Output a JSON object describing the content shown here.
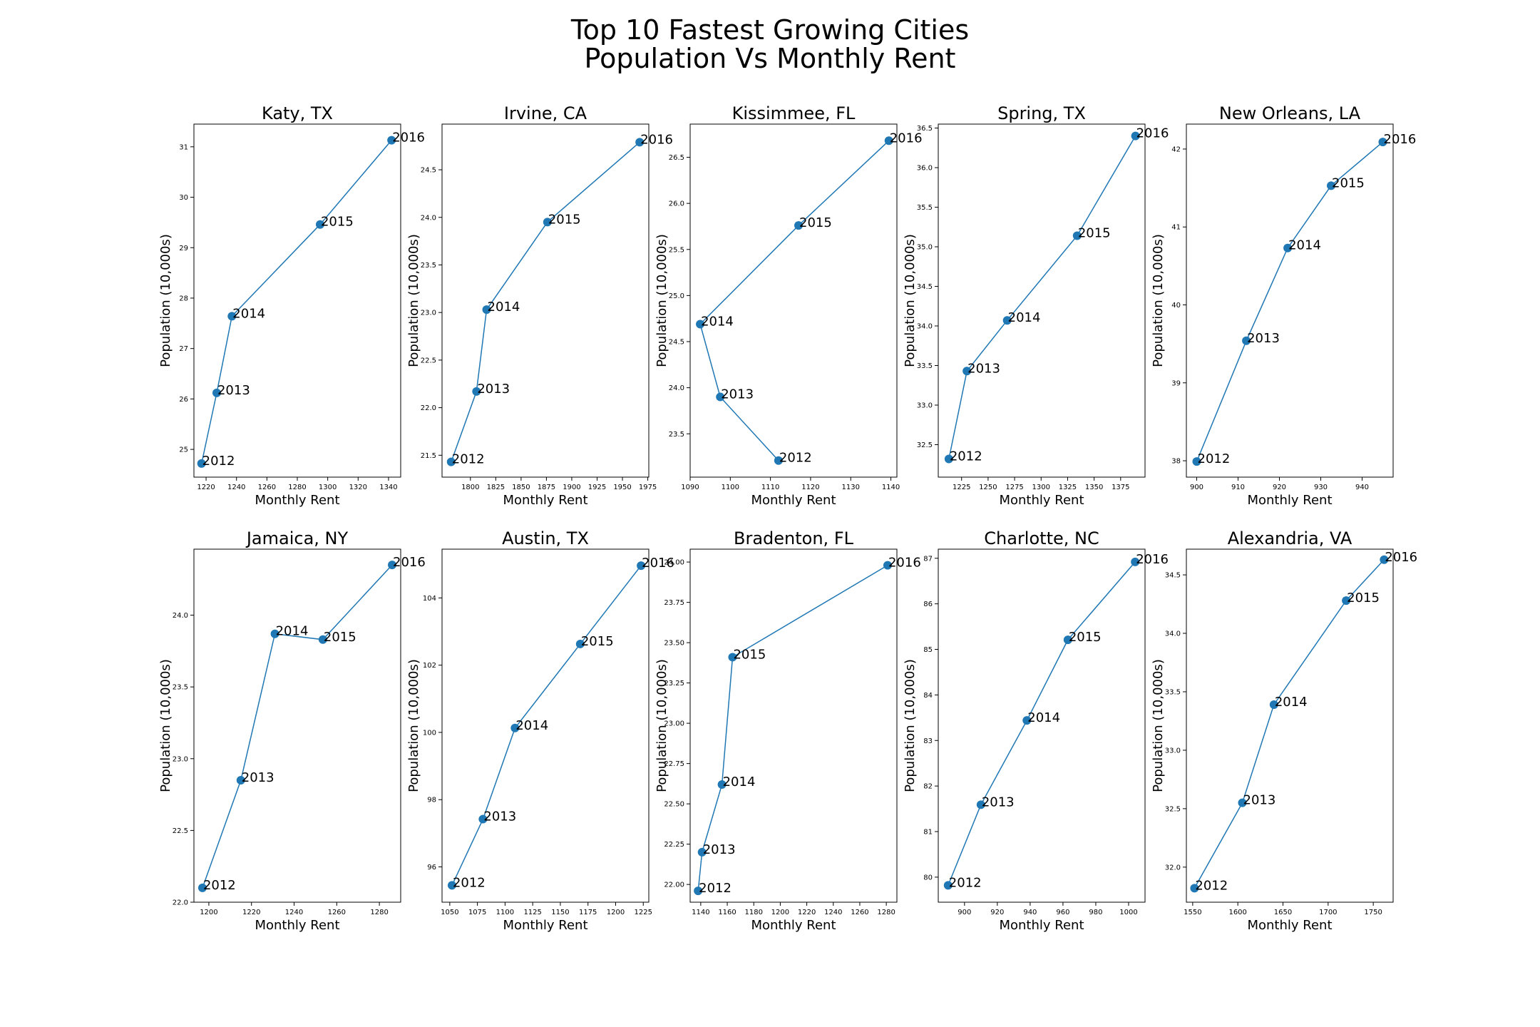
{
  "figure": {
    "title_line1": "Top 10 Fastest Growing Cities",
    "title_line2": "Population Vs Monthly Rent"
  },
  "colors": {
    "series": "#1f77b4",
    "axis": "#000000",
    "background": "#ffffff"
  },
  "chart_data": [
    {
      "type": "scatter",
      "title": "Katy, TX",
      "xlabel": "Monthly Rent",
      "ylabel": "Population (10,000s)",
      "xlim": [
        1212,
        1348
      ],
      "ylim": [
        24.45,
        31.45
      ],
      "xticks": [
        1220,
        1240,
        1260,
        1280,
        1300,
        1320,
        1340
      ],
      "yticks": [
        25,
        26,
        27,
        28,
        29,
        30,
        31
      ],
      "points": [
        {
          "label": "2012",
          "x": 1217,
          "y": 24.72
        },
        {
          "label": "2013",
          "x": 1227,
          "y": 26.12
        },
        {
          "label": "2014",
          "x": 1237,
          "y": 27.64
        },
        {
          "label": "2015",
          "x": 1295,
          "y": 29.46
        },
        {
          "label": "2016",
          "x": 1342,
          "y": 31.13
        }
      ]
    },
    {
      "type": "scatter",
      "title": "Irvine, CA",
      "xlabel": "Monthly Rent",
      "ylabel": "Population (10,000s)",
      "xlim": [
        1772,
        1976
      ],
      "ylim": [
        21.27,
        24.98
      ],
      "xticks": [
        1800,
        1825,
        1850,
        1875,
        1900,
        1925,
        1950,
        1975
      ],
      "yticks": [
        21.5,
        22.0,
        22.5,
        23.0,
        23.5,
        24.0,
        24.5
      ],
      "points": [
        {
          "label": "2012",
          "x": 1781,
          "y": 21.43
        },
        {
          "label": "2013",
          "x": 1806,
          "y": 22.17
        },
        {
          "label": "2014",
          "x": 1816,
          "y": 23.03
        },
        {
          "label": "2015",
          "x": 1876,
          "y": 23.95
        },
        {
          "label": "2016",
          "x": 1967,
          "y": 24.79
        }
      ]
    },
    {
      "type": "scatter",
      "title": "Kissimmee, FL",
      "xlabel": "Monthly Rent",
      "ylabel": "Population (10,000s)",
      "xlim": [
        1090,
        1141.5
      ],
      "ylim": [
        23.03,
        26.86
      ],
      "xticks": [
        1090,
        1100,
        1110,
        1120,
        1130,
        1140
      ],
      "yticks": [
        23.5,
        24.0,
        24.5,
        25.0,
        25.5,
        26.0,
        26.5
      ],
      "points": [
        {
          "label": "2012",
          "x": 1112,
          "y": 23.21
        },
        {
          "label": "2013",
          "x": 1097.5,
          "y": 23.9
        },
        {
          "label": "2014",
          "x": 1092.5,
          "y": 24.69
        },
        {
          "label": "2015",
          "x": 1117,
          "y": 25.76
        },
        {
          "label": "2016",
          "x": 1139.5,
          "y": 26.68
        }
      ]
    },
    {
      "type": "scatter",
      "title": "Spring, TX",
      "xlabel": "Monthly Rent",
      "ylabel": "Population (10,000s)",
      "xlim": [
        1203,
        1398
      ],
      "ylim": [
        32.09,
        36.55
      ],
      "xticks": [
        1225,
        1250,
        1275,
        1300,
        1325,
        1350,
        1375
      ],
      "yticks": [
        32.5,
        33.0,
        33.5,
        34.0,
        34.5,
        35.0,
        35.5,
        36.0,
        36.5
      ],
      "points": [
        {
          "label": "2012",
          "x": 1213,
          "y": 32.32
        },
        {
          "label": "2013",
          "x": 1230,
          "y": 33.43
        },
        {
          "label": "2014",
          "x": 1268,
          "y": 34.07
        },
        {
          "label": "2015",
          "x": 1334,
          "y": 35.14
        },
        {
          "label": "2016",
          "x": 1389,
          "y": 36.4
        }
      ]
    },
    {
      "type": "scatter",
      "title": "New Orleans, LA",
      "xlabel": "Monthly Rent",
      "ylabel": "Population (10,000s)",
      "xlim": [
        897.5,
        947.5
      ],
      "ylim": [
        37.79,
        42.32
      ],
      "xticks": [
        900,
        910,
        920,
        930,
        940
      ],
      "yticks": [
        38,
        39,
        40,
        41,
        42
      ],
      "points": [
        {
          "label": "2012",
          "x": 900,
          "y": 37.99
        },
        {
          "label": "2013",
          "x": 912,
          "y": 39.54
        },
        {
          "label": "2014",
          "x": 922,
          "y": 40.73
        },
        {
          "label": "2015",
          "x": 932.5,
          "y": 41.53
        },
        {
          "label": "2016",
          "x": 945,
          "y": 42.09
        }
      ]
    },
    {
      "type": "scatter",
      "title": "Jamaica, NY",
      "xlabel": "Monthly Rent",
      "ylabel": "Population (10,000s)",
      "xlim": [
        1193,
        1290
      ],
      "ylim": [
        22.0,
        24.46
      ],
      "xticks": [
        1200,
        1220,
        1240,
        1260,
        1280
      ],
      "yticks": [
        22.0,
        22.5,
        23.0,
        23.5,
        24.0
      ],
      "points": [
        {
          "label": "2012",
          "x": 1197,
          "y": 22.1
        },
        {
          "label": "2013",
          "x": 1215,
          "y": 22.85
        },
        {
          "label": "2014",
          "x": 1231,
          "y": 23.87
        },
        {
          "label": "2015",
          "x": 1253.5,
          "y": 23.83
        },
        {
          "label": "2016",
          "x": 1286,
          "y": 24.35
        }
      ]
    },
    {
      "type": "scatter",
      "title": "Austin, TX",
      "xlabel": "Monthly Rent",
      "ylabel": "Population (10,000s)",
      "xlim": [
        1043,
        1230
      ],
      "ylim": [
        94.95,
        105.45
      ],
      "xticks": [
        1050,
        1075,
        1100,
        1125,
        1150,
        1175,
        1200,
        1225
      ],
      "yticks": [
        96,
        98,
        100,
        102,
        104
      ],
      "points": [
        {
          "label": "2012",
          "x": 1052,
          "y": 95.45
        },
        {
          "label": "2013",
          "x": 1080,
          "y": 97.42
        },
        {
          "label": "2014",
          "x": 1109,
          "y": 100.13
        },
        {
          "label": "2015",
          "x": 1168,
          "y": 102.63
        },
        {
          "label": "2016",
          "x": 1223,
          "y": 104.96
        }
      ]
    },
    {
      "type": "scatter",
      "title": "Bradenton, FL",
      "xlabel": "Monthly Rent",
      "ylabel": "Population (10,000s)",
      "xlim": [
        1132,
        1288
      ],
      "ylim": [
        21.89,
        24.08
      ],
      "xticks": [
        1140,
        1160,
        1180,
        1200,
        1220,
        1240,
        1260,
        1280
      ],
      "yticks": [
        22.0,
        22.25,
        22.5,
        22.75,
        23.0,
        23.25,
        23.5,
        23.75,
        24.0
      ],
      "points": [
        {
          "label": "2012",
          "x": 1138,
          "y": 21.96
        },
        {
          "label": "2013",
          "x": 1141,
          "y": 22.2
        },
        {
          "label": "2014",
          "x": 1156,
          "y": 22.62
        },
        {
          "label": "2015",
          "x": 1164,
          "y": 23.41
        },
        {
          "label": "2016",
          "x": 1281,
          "y": 23.98
        }
      ]
    },
    {
      "type": "scatter",
      "title": "Charlotte, NC",
      "xlabel": "Monthly Rent",
      "ylabel": "Population (10,000s)",
      "xlim": [
        884,
        1010
      ],
      "ylim": [
        79.45,
        87.2
      ],
      "xticks": [
        900,
        920,
        940,
        960,
        980,
        1000
      ],
      "yticks": [
        80,
        81,
        82,
        83,
        84,
        85,
        86,
        87
      ],
      "points": [
        {
          "label": "2012",
          "x": 890,
          "y": 79.82
        },
        {
          "label": "2013",
          "x": 910,
          "y": 81.59
        },
        {
          "label": "2014",
          "x": 938,
          "y": 83.44
        },
        {
          "label": "2015",
          "x": 963,
          "y": 85.21
        },
        {
          "label": "2016",
          "x": 1004,
          "y": 86.92
        }
      ]
    },
    {
      "type": "scatter",
      "title": "Alexandria, VA",
      "xlabel": "Monthly Rent",
      "ylabel": "Population (10,000s)",
      "xlim": [
        1543,
        1772
      ],
      "ylim": [
        31.7,
        34.72
      ],
      "xticks": [
        1550,
        1600,
        1650,
        1700,
        1750
      ],
      "yticks": [
        32.0,
        32.5,
        33.0,
        33.5,
        34.0,
        34.5
      ],
      "points": [
        {
          "label": "2012",
          "x": 1552,
          "y": 31.82
        },
        {
          "label": "2013",
          "x": 1605,
          "y": 32.55
        },
        {
          "label": "2014",
          "x": 1640,
          "y": 33.39
        },
        {
          "label": "2015",
          "x": 1720,
          "y": 34.28
        },
        {
          "label": "2016",
          "x": 1762,
          "y": 34.63
        }
      ]
    }
  ]
}
